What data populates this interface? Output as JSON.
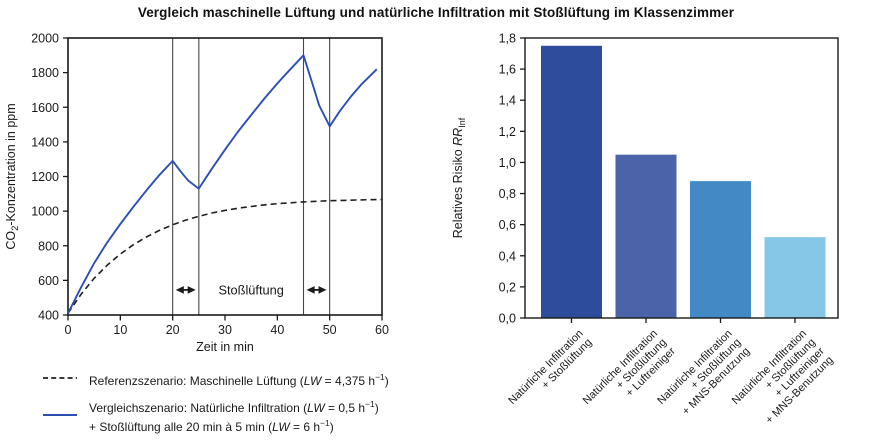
{
  "title": "Vergleich maschinelle Lüftung und natürliche Infiltration mit Stoßlüftung im Klassenzimmer",
  "chart_data": [
    {
      "type": "line",
      "xlabel": "Zeit in min",
      "ylabel_parts": {
        "pre": "CO",
        "sub": "2",
        "post": "-Konzentration in ppm"
      },
      "xlim": [
        0,
        60
      ],
      "ylim": [
        400,
        2000
      ],
      "xticks": [
        0,
        10,
        20,
        30,
        40,
        50,
        60
      ],
      "yticks": [
        400,
        600,
        800,
        1000,
        1200,
        1400,
        1600,
        1800,
        2000
      ],
      "grid": false,
      "vlines": [
        20,
        25,
        45,
        50
      ],
      "annotation": {
        "label": "Stoßlüftung",
        "x": 35,
        "y": 545,
        "arrow_y": 545,
        "arrow_spans": [
          [
            20.6,
            24.4
          ],
          [
            45.6,
            49.4
          ]
        ]
      },
      "series": [
        {
          "name": "Referenzszenario: Maschinelle Lüftung",
          "style": "dashed",
          "color": "#1f1f1f",
          "points": [
            [
              0,
              410
            ],
            [
              2.5,
              520
            ],
            [
              5,
              612
            ],
            [
              7.5,
              688
            ],
            [
              10,
              752
            ],
            [
              12.5,
              806
            ],
            [
              15,
              851
            ],
            [
              17.5,
              889
            ],
            [
              20,
              921
            ],
            [
              22.5,
              948
            ],
            [
              25,
              970
            ],
            [
              27.5,
              989
            ],
            [
              30,
              1004
            ],
            [
              32.5,
              1017
            ],
            [
              35,
              1027
            ],
            [
              37.5,
              1036
            ],
            [
              40,
              1043
            ],
            [
              42.5,
              1048
            ],
            [
              45,
              1053
            ],
            [
              47.5,
              1057
            ],
            [
              50,
              1060
            ],
            [
              52.5,
              1062
            ],
            [
              55,
              1064
            ],
            [
              57.5,
              1066
            ],
            [
              60,
              1067
            ]
          ]
        },
        {
          "name": "Vergleichszenario: Natürliche Infiltration + Stoßlüftung",
          "style": "solid",
          "color": "#2b50b2",
          "points": [
            [
              0,
              410
            ],
            [
              2.5,
              560
            ],
            [
              5,
              700
            ],
            [
              7.5,
              820
            ],
            [
              10,
              925
            ],
            [
              12.5,
              1025
            ],
            [
              15,
              1120
            ],
            [
              17.5,
              1210
            ],
            [
              20,
              1290
            ],
            [
              21.5,
              1230
            ],
            [
              23,
              1175
            ],
            [
              25,
              1130
            ],
            [
              27.5,
              1245
            ],
            [
              30,
              1355
            ],
            [
              32.5,
              1460
            ],
            [
              35,
              1555
            ],
            [
              37.5,
              1650
            ],
            [
              40,
              1737
            ],
            [
              42.5,
              1820
            ],
            [
              45,
              1900
            ],
            [
              46.5,
              1755
            ],
            [
              48,
              1610
            ],
            [
              50,
              1490
            ],
            [
              52,
              1580
            ],
            [
              54,
              1660
            ],
            [
              56,
              1730
            ],
            [
              59,
              1820
            ]
          ]
        }
      ]
    },
    {
      "type": "bar",
      "ylabel_parts": {
        "pre": "Relatives Risiko ",
        "italic": "RR",
        "sub": "Inf"
      },
      "ylim": [
        0,
        1.8
      ],
      "yticks": [
        0,
        0.2,
        0.4,
        0.6,
        0.8,
        1.0,
        1.2,
        1.4,
        1.6,
        1.8
      ],
      "ytick_labels": [
        "0,0",
        "0,2",
        "0,4",
        "0,6",
        "0,8",
        "1,0",
        "1,2",
        "1,4",
        "1,6",
        "1,8"
      ],
      "grid": false,
      "categories": [
        [
          "Natürliche Infiltration",
          "+ Stoßlüftung"
        ],
        [
          "Natürliche Infiltration",
          "+ Stoßlüftung",
          "+ Luftreiniger"
        ],
        [
          "Natürliche Infiltration",
          "+ Stoßlüftung",
          "+ MNS-Benutzung"
        ],
        [
          "Natürliche Infiltration",
          "+ Stoßlüftung",
          "+ Luftreiniger",
          "+ MNS-Benutzung"
        ]
      ],
      "values": [
        1.75,
        1.05,
        0.88,
        0.52
      ],
      "colors": [
        "#2d4d9c",
        "#4b63a9",
        "#4289c6",
        "#86c7e8"
      ]
    }
  ],
  "legend": {
    "entries": [
      {
        "style": "dashed",
        "color": "#1f1f1f",
        "lines": [
          "Referenzszenario: Maschinelle Lüftung (LW = 4,375 h⁻¹)"
        ]
      },
      {
        "style": "solid",
        "color": "#2b50b2",
        "lines": [
          "Vergleichszenario: Natürliche Infiltration (LW = 0,5 h⁻¹)",
          "+ Stoßlüftung alle 20 min à 5 min (LW = 6 h⁻¹)"
        ]
      }
    ]
  }
}
